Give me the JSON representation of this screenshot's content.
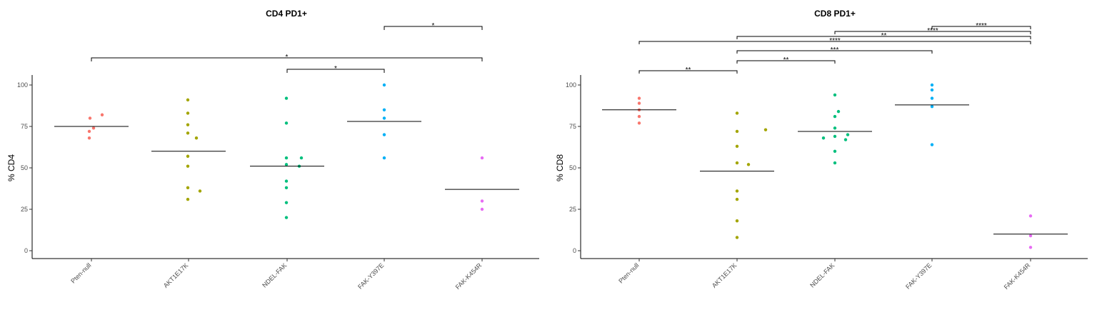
{
  "chart_data": [
    {
      "type": "scatter",
      "title": "CD4 PD1+",
      "xlabel": "",
      "ylabel": "% CD4",
      "ylim": [
        0,
        100
      ],
      "yticks": [
        0,
        25,
        50,
        75,
        100
      ],
      "grid": false,
      "legend": "none",
      "categories": [
        "Pten-null",
        "AKT1E17K",
        "NDEL-FAK",
        "FAK-Y397E",
        "FAK-K454R"
      ],
      "colors": [
        "#F8766D",
        "#A3A500",
        "#00BF7D",
        "#00B0F6",
        "#E76BF3"
      ],
      "points": [
        [
          80,
          82,
          74,
          72,
          68
        ],
        [
          91,
          83,
          76,
          71,
          68,
          57,
          51,
          38,
          36,
          31
        ],
        [
          92,
          77,
          56,
          56,
          52,
          51,
          42,
          38,
          29,
          20
        ],
        [
          100,
          85,
          80,
          70,
          56
        ],
        [
          56,
          30,
          25
        ]
      ],
      "means": [
        75,
        60,
        51,
        78,
        37
      ],
      "comparisons": [
        {
          "from": 3,
          "to": 4,
          "label": "*"
        },
        {
          "from": 0,
          "to": 4,
          "label": "*"
        },
        {
          "from": 2,
          "to": 3,
          "label": "*"
        }
      ]
    },
    {
      "type": "scatter",
      "title": "CD8 PD1+",
      "xlabel": "",
      "ylabel": "% CD8",
      "ylim": [
        0,
        100
      ],
      "yticks": [
        0,
        25,
        50,
        75,
        100
      ],
      "grid": false,
      "legend": "none",
      "categories": [
        "Pten-null",
        "AKT1E17K",
        "NDEL-FAK",
        "FAK-Y397E",
        "FAK-K454R"
      ],
      "colors": [
        "#F8766D",
        "#A3A500",
        "#00BF7D",
        "#00B0F6",
        "#E76BF3"
      ],
      "points": [
        [
          92,
          89,
          85,
          81,
          77
        ],
        [
          83,
          73,
          72,
          63,
          53,
          52,
          36,
          31,
          18,
          8
        ],
        [
          94,
          84,
          81,
          74,
          70,
          69,
          68,
          67,
          60,
          53
        ],
        [
          100,
          97,
          92,
          87,
          64
        ],
        [
          21,
          9,
          2
        ]
      ],
      "means": [
        85,
        48,
        72,
        88,
        10
      ],
      "comparisons": [
        {
          "from": 3,
          "to": 4,
          "label": "****"
        },
        {
          "from": 2,
          "to": 4,
          "label": "****"
        },
        {
          "from": 1,
          "to": 4,
          "label": "**"
        },
        {
          "from": 0,
          "to": 4,
          "label": "****"
        },
        {
          "from": 1,
          "to": 3,
          "label": "***"
        },
        {
          "from": 1,
          "to": 2,
          "label": "**"
        },
        {
          "from": 0,
          "to": 1,
          "label": "**"
        }
      ]
    }
  ]
}
